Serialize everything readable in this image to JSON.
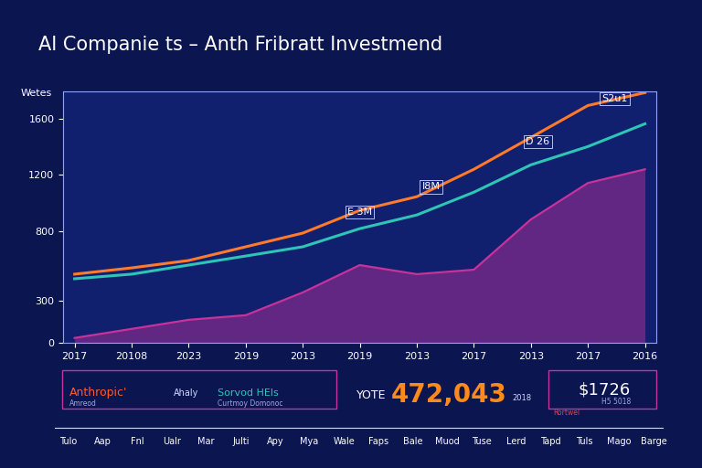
{
  "chart_data": {
    "type": "line",
    "title": "AI Companie ts – Anth Fribratt Investmend",
    "y_label": "Wetes",
    "categories": [
      "2017",
      "20108",
      "2023",
      "2019",
      "2013",
      "2019",
      "2013",
      "2017",
      "2013",
      "2017",
      "2016"
    ],
    "series": [
      {
        "name": "Anthropic",
        "color": "#ff7a2a",
        "type": "line",
        "values": [
          490,
          535,
          588,
          686,
          784,
          947,
          1045,
          1241,
          1469,
          1698,
          1790
        ]
      },
      {
        "name": "Sorvod HEls",
        "color": "#2ec4b6",
        "type": "line",
        "values": [
          457,
          490,
          555,
          620,
          686,
          816,
          914,
          1077,
          1273,
          1404,
          1567
        ]
      },
      {
        "name": "Rortwel",
        "color": "#c8329b",
        "type": "area",
        "values": [
          33,
          98,
          163,
          196,
          359,
          555,
          490,
          522,
          882,
          1143,
          1241
        ]
      }
    ],
    "ylim": [
      0,
      1800
    ],
    "yticks": [
      0,
      300,
      800,
      1200,
      1600
    ],
    "grid": false,
    "annotations": [
      "S2u1",
      "D 26",
      "I8M",
      "E 3M"
    ]
  },
  "panels": {
    "left_box": {
      "name": "Anthropic'",
      "sub": "Amreod",
      "middle": "Ahaly",
      "second_name": "Sorvod HEls",
      "second_sub": "Curtmoy Domonoc"
    },
    "center": {
      "label": "YOTE",
      "number": "472,043",
      "year": "2018"
    },
    "right_box": {
      "amount": "$1726",
      "sub": "H5 5018",
      "corner": "Rortwel"
    },
    "footer_labels": [
      "Tulo",
      "Aap",
      "Fnl",
      "Ualr",
      "Mar",
      "Julti",
      "Apy",
      "Mya",
      "Wale",
      "Faps",
      "Bale",
      "Muod",
      "Tuse",
      "Lerd",
      "Tapd",
      "Tuls",
      "Mago",
      "Barge"
    ]
  }
}
